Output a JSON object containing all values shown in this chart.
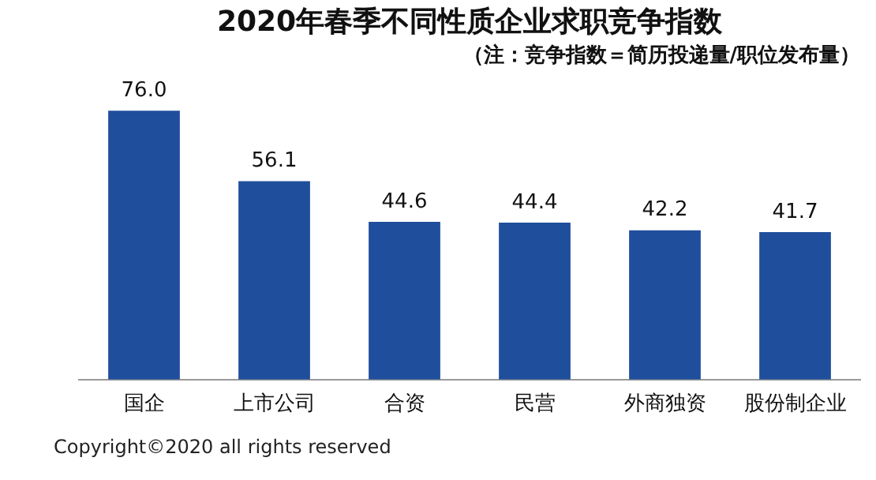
{
  "chart_data": {
    "type": "bar",
    "title": "2020年春季不同性质企业求职竞争指数",
    "subtitle": "（注：竞争指数＝简历投递量/职位发布量）",
    "categories": [
      "国企",
      "上市公司",
      "合资",
      "民营",
      "外商独资",
      "股份制企业"
    ],
    "values": [
      76.0,
      56.1,
      44.6,
      44.4,
      42.2,
      41.7
    ],
    "value_labels": [
      "76.0",
      "56.1",
      "44.6",
      "44.4",
      "42.2",
      "41.7"
    ],
    "color": "#1f4e9c",
    "grid": false,
    "annotations": [
      "Copyright©2020 all rights reserved"
    ]
  }
}
